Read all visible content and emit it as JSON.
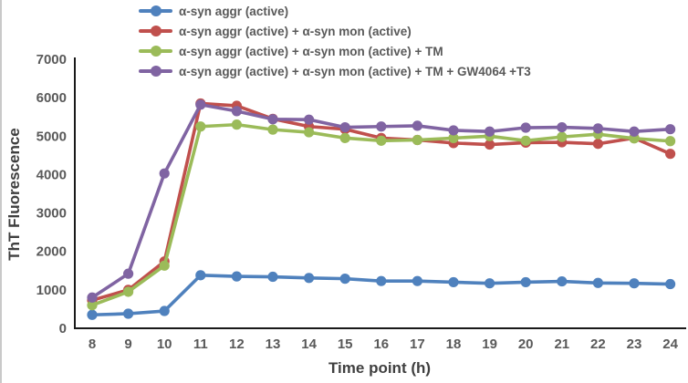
{
  "figure": {
    "background": "#ffffff",
    "edge_line_color": "#c9c9c9"
  },
  "axis_style": {
    "tick_text_color": "#595959",
    "title_text_color": "#3f3f3f",
    "axis_line_color": "#1a1a1a"
  },
  "chart_data": {
    "type": "line",
    "title": "",
    "xlabel": "Time point (h)",
    "ylabel": "ThT Fluorescence",
    "x": [
      8,
      9,
      10,
      11,
      12,
      13,
      14,
      15,
      16,
      17,
      18,
      19,
      20,
      21,
      22,
      23,
      24
    ],
    "x_ticks": [
      8,
      9,
      10,
      11,
      12,
      13,
      14,
      15,
      16,
      17,
      18,
      19,
      20,
      21,
      22,
      23,
      24
    ],
    "y_ticks": [
      0,
      1000,
      2000,
      3000,
      4000,
      5000,
      6000,
      7000
    ],
    "xlim": [
      8,
      24
    ],
    "ylim": [
      0,
      7000
    ],
    "grid": false,
    "legend_position": "top-left",
    "marker": "circle",
    "series": [
      {
        "name": "α-syn aggr (active)",
        "color": "#4F81BD",
        "values": [
          350,
          380,
          450,
          1380,
          1350,
          1340,
          1310,
          1290,
          1230,
          1230,
          1200,
          1170,
          1200,
          1220,
          1180,
          1170,
          1150
        ]
      },
      {
        "name": "α-syn aggr (active) + α-syn mon (active)",
        "color": "#C0504D",
        "values": [
          730,
          1000,
          1740,
          5850,
          5790,
          5450,
          5250,
          5180,
          4950,
          4900,
          4820,
          4780,
          4830,
          4840,
          4800,
          4950,
          4540
        ]
      },
      {
        "name": "α-syn aggr (active) + α-syn mon (active) + TM",
        "color": "#9BBB59",
        "values": [
          600,
          950,
          1630,
          5250,
          5300,
          5170,
          5100,
          4950,
          4880,
          4900,
          4950,
          5000,
          4880,
          4980,
          5050,
          4940,
          4870
        ]
      },
      {
        "name": "α-syn aggr (active) + α-syn mon (active) + TM + GW4064 +T3",
        "color": "#8064A2",
        "values": [
          800,
          1420,
          4030,
          5820,
          5650,
          5440,
          5430,
          5230,
          5250,
          5270,
          5150,
          5120,
          5220,
          5230,
          5200,
          5120,
          5180
        ]
      }
    ]
  }
}
